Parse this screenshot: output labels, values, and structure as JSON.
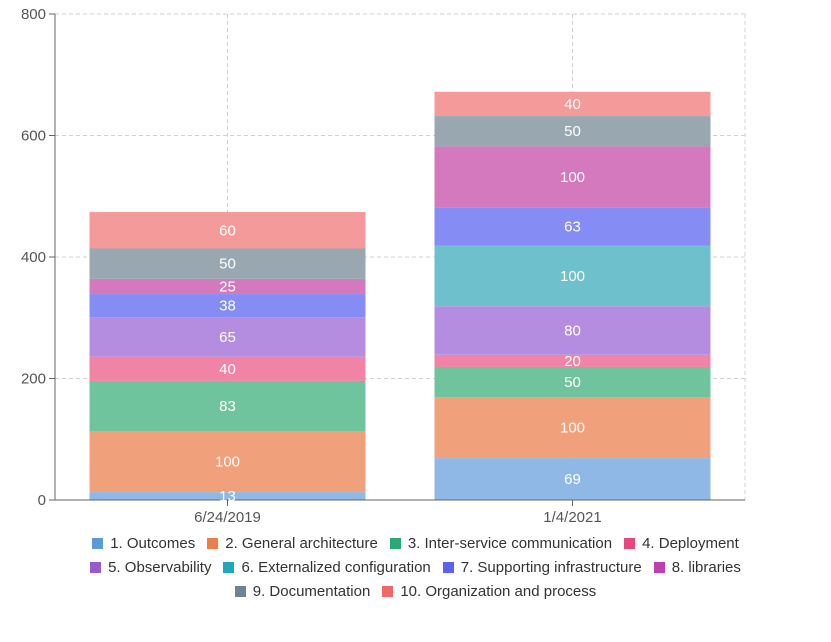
{
  "chart_data": {
    "type": "bar",
    "stacked": true,
    "categories": [
      "6/24/2019",
      "1/4/2021"
    ],
    "ylim": [
      0,
      800
    ],
    "yticks": [
      0,
      200,
      400,
      600,
      800
    ],
    "grid": true,
    "legend_position": "bottom",
    "series": [
      {
        "name": "1. Outcomes",
        "values": [
          13,
          69
        ],
        "color": "#5b9bd5",
        "fill": "#8fb8e6"
      },
      {
        "name": "2. General architecture",
        "values": [
          100,
          100
        ],
        "color": "#ed7d4a",
        "fill": "#f0a07a"
      },
      {
        "name": "3. Inter-service communication",
        "values": [
          83,
          50
        ],
        "color": "#2aa876",
        "fill": "#6fc49e"
      },
      {
        "name": "4. Deployment",
        "values": [
          40,
          20
        ],
        "color": "#e8467c",
        "fill": "#f083a6"
      },
      {
        "name": "5. Observability",
        "values": [
          65,
          80
        ],
        "color": "#9b59d0",
        "fill": "#b48de0"
      },
      {
        "name": "6. Externalized configuration",
        "values": [
          0,
          100
        ],
        "color": "#1fa8b8",
        "fill": "#6ec1cc"
      },
      {
        "name": "7. Supporting infrastructure",
        "values": [
          38,
          63
        ],
        "color": "#5a63f0",
        "fill": "#858cf3"
      },
      {
        "name": "8. libraries",
        "values": [
          25,
          100
        ],
        "color": "#c03fb0",
        "fill": "#d579bf"
      },
      {
        "name": "9. Documentation",
        "values": [
          50,
          50
        ],
        "color": "#6e8494",
        "fill": "#99a7b0"
      },
      {
        "name": "10. Organization and process",
        "values": [
          60,
          40
        ],
        "color": "#f06868",
        "fill": "#f49a9a"
      }
    ]
  }
}
